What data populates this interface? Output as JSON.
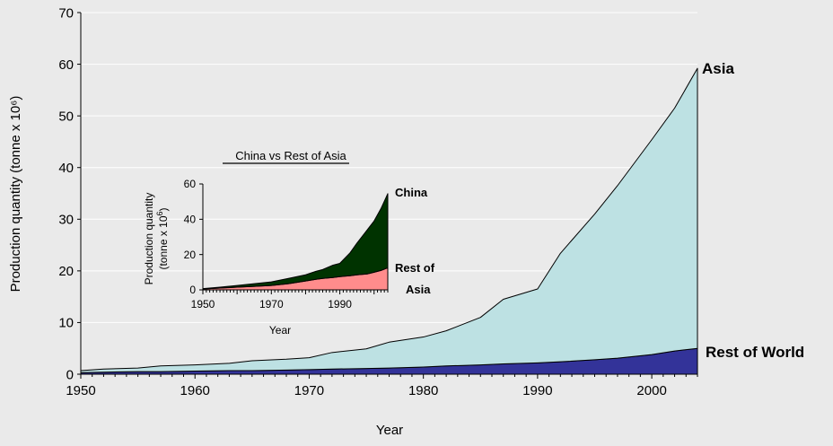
{
  "chart_data": [
    {
      "type": "area",
      "stacked": true,
      "title": "",
      "xlabel": "Year",
      "ylabel": "Production quantity (tonne x 10⁶)",
      "xlim": [
        1950,
        2004
      ],
      "ylim": [
        0,
        70
      ],
      "x_ticks": [
        "1950",
        "1960",
        "1970",
        "1980",
        "1990",
        "2000"
      ],
      "y_ticks": [
        "0",
        "10",
        "20",
        "30",
        "40",
        "50",
        "60",
        "70"
      ],
      "grid": "horizontal",
      "x": [
        1950,
        1952,
        1955,
        1957,
        1960,
        1963,
        1965,
        1968,
        1970,
        1972,
        1975,
        1977,
        1980,
        1982,
        1985,
        1987,
        1990,
        1992,
        1995,
        1997,
        2000,
        2002,
        2004
      ],
      "series": [
        {
          "name": "Rest of World",
          "color": "#333399",
          "values": [
            0.3,
            0.4,
            0.5,
            0.5,
            0.6,
            0.7,
            0.7,
            0.8,
            0.9,
            1.0,
            1.1,
            1.2,
            1.4,
            1.6,
            1.8,
            2.0,
            2.2,
            2.4,
            2.8,
            3.1,
            3.8,
            4.5,
            5.0
          ]
        },
        {
          "name": "Asia",
          "color": "#bde1e3",
          "values": [
            0.4,
            0.6,
            0.7,
            1.1,
            1.2,
            1.4,
            1.9,
            2.1,
            2.3,
            3.2,
            3.8,
            5.0,
            5.8,
            6.8,
            9.2,
            12.5,
            14.3,
            21.0,
            28.2,
            33.4,
            41.6,
            47.0,
            54.2
          ]
        }
      ],
      "annotations": [
        "Asia",
        "Rest of World"
      ]
    },
    {
      "type": "area",
      "stacked": true,
      "title": "China vs Rest of Asia",
      "xlabel": "Year",
      "ylabel_lines": [
        "Production quantity",
        "(tonne x 10",
        "6",
        ")"
      ],
      "xlim": [
        1950,
        2004
      ],
      "ylim": [
        0,
        60
      ],
      "x_ticks": [
        "1950",
        "1970",
        "1990"
      ],
      "y_ticks": [
        "0",
        "20",
        "40",
        "60"
      ],
      "grid": "none",
      "x": [
        1950,
        1955,
        1960,
        1965,
        1970,
        1975,
        1980,
        1983,
        1985,
        1988,
        1990,
        1993,
        1995,
        1998,
        2000,
        2002,
        2004
      ],
      "series": [
        {
          "name": "Rest of Asia",
          "color": "#ff8c8c",
          "values": [
            0.5,
            1.0,
            1.5,
            2.0,
            2.5,
            3.5,
            5.0,
            6.0,
            6.5,
            7.0,
            7.5,
            8.0,
            8.5,
            9.0,
            10.0,
            11.0,
            12.5
          ]
        },
        {
          "name": "China",
          "color": "#003300",
          "values": [
            0.2,
            0.5,
            1.0,
            1.5,
            2.0,
            3.0,
            3.5,
            4.5,
            5.0,
            7.0,
            7.5,
            13.0,
            18.0,
            25.0,
            29.0,
            35.0,
            42.0
          ]
        }
      ],
      "annotations": [
        "China",
        "Rest of",
        "Asia"
      ]
    }
  ]
}
